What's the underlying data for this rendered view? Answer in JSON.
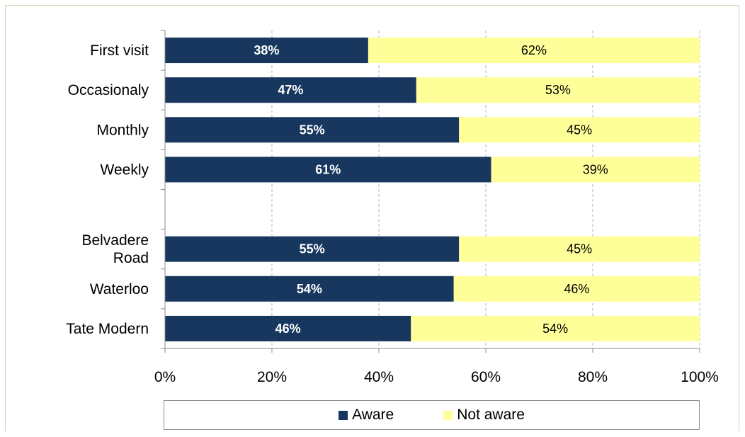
{
  "colors": {
    "aware": "#17375e",
    "not_aware": "#ffff99",
    "grid": "#a6b8d4",
    "axis": "#8c8c8c"
  },
  "chart_data": {
    "type": "bar",
    "orientation": "horizontal",
    "stacked": true,
    "percent_stacked": true,
    "categories": [
      {
        "label": [
          "First visit"
        ],
        "aware": 38,
        "not_aware": 62
      },
      {
        "label": [
          "Occasionaly"
        ],
        "aware": 47,
        "not_aware": 53
      },
      {
        "label": [
          "Monthly"
        ],
        "aware": 55,
        "not_aware": 45
      },
      {
        "label": [
          "Weekly"
        ],
        "aware": 61,
        "not_aware": 39
      },
      {
        "label": [],
        "aware": null,
        "not_aware": null
      },
      {
        "label": [
          "Belvadere",
          "Road"
        ],
        "aware": 55,
        "not_aware": 45
      },
      {
        "label": [
          "Waterloo"
        ],
        "aware": 54,
        "not_aware": 46
      },
      {
        "label": [
          "Tate Modern"
        ],
        "aware": 46,
        "not_aware": 54
      }
    ],
    "series": [
      {
        "name": "Aware",
        "key": "aware"
      },
      {
        "name": "Not aware",
        "key": "not_aware"
      }
    ],
    "xticks": [
      "0%",
      "20%",
      "40%",
      "60%",
      "80%",
      "100%"
    ],
    "xlim": [
      0,
      100
    ],
    "grid": true,
    "legend_position": "bottom"
  }
}
